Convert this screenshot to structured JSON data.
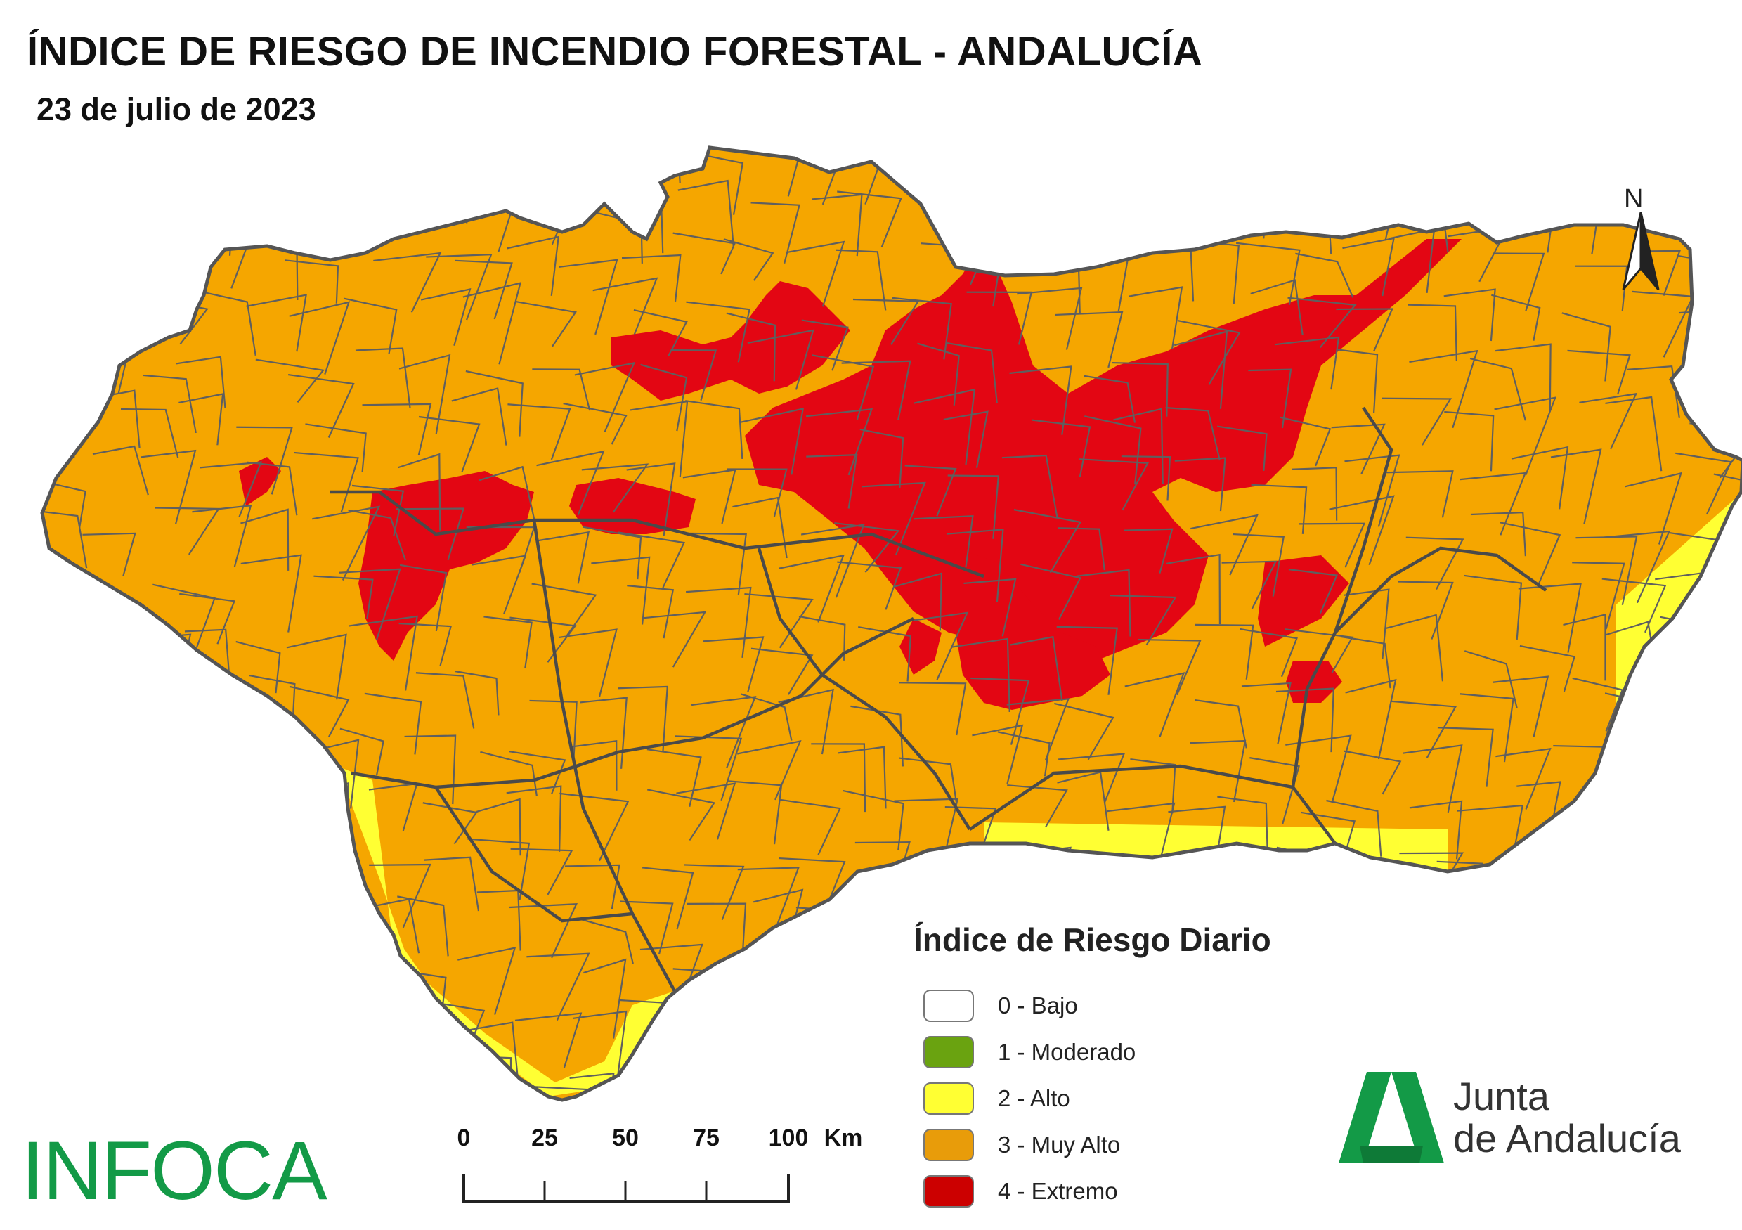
{
  "header": {
    "title": "ÍNDICE DE RIESGO DE INCENDIO FORESTAL - ANDALUCÍA",
    "date": "23 de julio de 2023"
  },
  "north_arrow": {
    "label": "N"
  },
  "legend": {
    "title": "Índice de Riesgo Diario",
    "items": [
      {
        "label": "0 - Bajo",
        "color": "#ffffff"
      },
      {
        "label": "1 - Moderado",
        "color": "#6aa310"
      },
      {
        "label": "2 - Alto",
        "color": "#ffff33"
      },
      {
        "label": "3 - Muy Alto",
        "color": "#e89c0a"
      },
      {
        "label": "4 - Extremo",
        "color": "#cc0000"
      }
    ]
  },
  "scale_bar": {
    "ticks": [
      "0",
      "25",
      "50",
      "75",
      "100"
    ],
    "unit": "Km"
  },
  "map_colors": {
    "muy_alto": "#f5a600",
    "extremo": "#e30613",
    "alto": "#ffff33",
    "borders": "#5f5f5f"
  },
  "branding": {
    "infoca": "INFOCA",
    "junta_line1": "Junta",
    "junta_line2": "de Andalucía",
    "logo_color": "#139a47"
  }
}
